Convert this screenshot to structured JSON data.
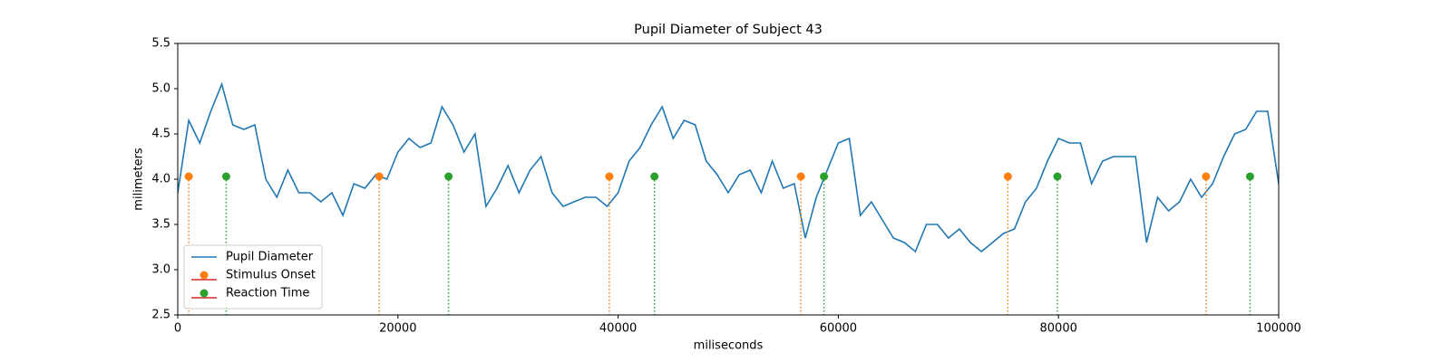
{
  "chart_data": {
    "type": "line",
    "title": "Pupil Diameter of Subject 43",
    "x_label": "miliseconds",
    "y_label": "milimeters",
    "xlim": [
      0,
      100000
    ],
    "ylim": [
      2.5,
      5.5
    ],
    "xticks": [
      0,
      20000,
      40000,
      60000,
      80000,
      100000
    ],
    "yticks": [
      2.5,
      {
        "value": 3,
        "label": "3.0"
      },
      3.5,
      {
        "value": 4,
        "label": "4.0"
      },
      4.5,
      {
        "value": 5,
        "label": "5.0"
      },
      5.5
    ],
    "grid": false,
    "legend": "lower left",
    "series": [
      {
        "name": "Pupil Diameter",
        "color": "#1f77b4",
        "style": "line",
        "x": [
          0,
          1000,
          2000,
          3000,
          4000,
          5000,
          6000,
          7000,
          8000,
          9000,
          10000,
          11000,
          12000,
          13000,
          14000,
          15000,
          16000,
          17000,
          18000,
          19000,
          20000,
          21000,
          22000,
          23000,
          24000,
          25000,
          26000,
          27000,
          28000,
          29000,
          30000,
          31000,
          32000,
          33000,
          34000,
          35000,
          36000,
          37000,
          38000,
          39000,
          40000,
          41000,
          42000,
          43000,
          44000,
          45000,
          46000,
          47000,
          48000,
          49000,
          50000,
          51000,
          52000,
          53000,
          54000,
          55000,
          56000,
          57000,
          58000,
          59000,
          60000,
          61000,
          62000,
          63000,
          64000,
          65000,
          66000,
          67000,
          68000,
          69000,
          70000,
          71000,
          72000,
          73000,
          74000,
          75000,
          76000,
          77000,
          78000,
          79000,
          80000,
          81000,
          82000,
          83000,
          84000,
          85000,
          86000,
          87000,
          88000,
          89000,
          90000,
          91000,
          92000,
          93000,
          94000,
          95000,
          96000,
          97000,
          98000,
          99000,
          100000
        ],
        "values": [
          3.85,
          4.65,
          4.4,
          4.75,
          5.05,
          4.6,
          4.55,
          4.6,
          4.0,
          3.8,
          4.1,
          3.85,
          3.85,
          3.75,
          3.85,
          3.6,
          3.95,
          3.9,
          4.05,
          4.0,
          4.3,
          4.45,
          4.35,
          4.4,
          4.8,
          4.6,
          4.3,
          4.5,
          3.7,
          3.9,
          4.15,
          3.85,
          4.1,
          4.25,
          3.85,
          3.7,
          3.75,
          3.8,
          3.8,
          3.7,
          3.85,
          4.2,
          4.35,
          4.6,
          4.8,
          4.45,
          4.65,
          4.6,
          4.2,
          4.05,
          3.85,
          4.05,
          4.1,
          3.85,
          4.2,
          3.9,
          3.95,
          3.35,
          3.8,
          4.1,
          4.4,
          4.45,
          3.6,
          3.75,
          3.55,
          3.35,
          3.3,
          3.2,
          3.5,
          3.5,
          3.35,
          3.45,
          3.3,
          3.2,
          3.3,
          3.4,
          3.45,
          3.75,
          3.9,
          4.2,
          4.45,
          4.4,
          4.4,
          3.95,
          4.2,
          4.25,
          4.25,
          4.25,
          3.3,
          3.8,
          3.65,
          3.75,
          4.0,
          3.8,
          3.95,
          4.25,
          4.5,
          4.55,
          4.75,
          4.75,
          3.95
        ]
      },
      {
        "name": "Stimulus Onset",
        "color": "#ff7f0e",
        "style": "stem",
        "x": [
          1000,
          18300,
          39200,
          56600,
          75400,
          93400
        ],
        "values": [
          4.03,
          4.03,
          4.03,
          4.03,
          4.03,
          4.03
        ]
      },
      {
        "name": "Reaction Time",
        "color": "#2ca02c",
        "style": "stem",
        "x": [
          4400,
          24600,
          43300,
          58700,
          79900,
          97400
        ],
        "values": [
          4.03,
          4.03,
          4.03,
          4.03,
          4.03,
          4.03
        ]
      }
    ]
  }
}
